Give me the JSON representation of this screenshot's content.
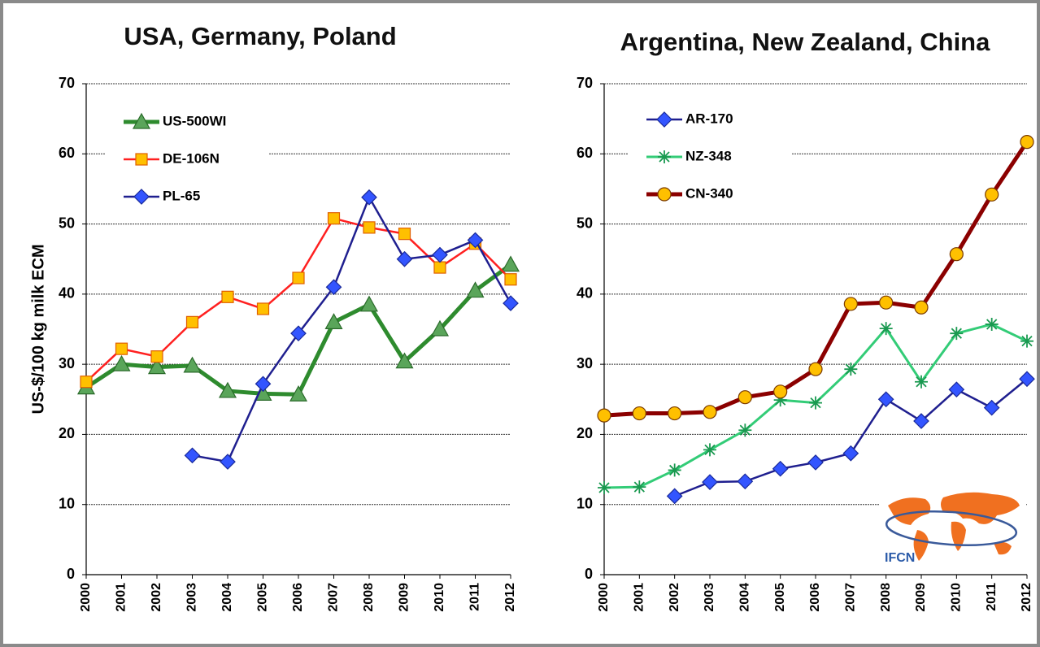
{
  "chart_data": [
    {
      "type": "line",
      "title": "USA, Germany, Poland",
      "ylabel": "US-$/100 kg milk ECM",
      "categories": [
        "2000",
        "2001",
        "2002",
        "2003",
        "2004",
        "2005",
        "2006",
        "2007",
        "2008",
        "2009",
        "2010",
        "2011",
        "2012"
      ],
      "ylim": [
        0,
        70
      ],
      "yticks": [
        0,
        10,
        20,
        30,
        40,
        50,
        60,
        70
      ],
      "grid": true,
      "legend": "upper-left",
      "series": [
        {
          "name": "US-500WI",
          "color": "#2e8b2e",
          "marker": "triangle",
          "marker_color": "#5aa55a",
          "values": [
            26.7,
            30.0,
            29.6,
            29.8,
            26.2,
            25.8,
            25.7,
            36.0,
            38.5,
            30.4,
            35.0,
            40.5,
            44.2
          ]
        },
        {
          "name": "DE-106N",
          "color": "#ff2020",
          "marker": "square",
          "marker_color": "#ffc000",
          "values": [
            27.5,
            32.2,
            31.1,
            36.0,
            39.6,
            37.9,
            42.3,
            50.8,
            49.5,
            48.6,
            43.8,
            47.2,
            42.1
          ]
        },
        {
          "name": "PL-65",
          "color": "#1f1f8f",
          "marker": "diamond",
          "marker_color": "#3355ff",
          "values": [
            null,
            null,
            null,
            17.0,
            16.1,
            27.2,
            34.4,
            41.0,
            53.8,
            45.0,
            45.6,
            47.7,
            38.7
          ]
        }
      ]
    },
    {
      "type": "line",
      "title": "Argentina, New Zealand, China",
      "categories": [
        "2000",
        "2001",
        "2002",
        "2003",
        "2004",
        "2005",
        "2006",
        "2007",
        "2008",
        "2009",
        "2010",
        "2011",
        "2012"
      ],
      "ylim": [
        0,
        70
      ],
      "yticks": [
        0,
        10,
        20,
        30,
        40,
        50,
        60,
        70
      ],
      "grid": true,
      "legend": "upper-left",
      "series": [
        {
          "name": "AR-170",
          "color": "#1f1f8f",
          "marker": "diamond",
          "marker_color": "#3355ff",
          "values": [
            null,
            null,
            11.2,
            13.2,
            13.3,
            15.1,
            16.0,
            17.3,
            25.0,
            21.9,
            26.4,
            23.8,
            27.9
          ]
        },
        {
          "name": "NZ-348",
          "color": "#33cc77",
          "marker": "star",
          "marker_color": "#1a9950",
          "values": [
            12.4,
            12.5,
            14.9,
            17.8,
            20.6,
            24.9,
            24.5,
            29.3,
            35.1,
            27.5,
            34.4,
            35.7,
            33.3
          ]
        },
        {
          "name": "CN-340",
          "color": "#8b0000",
          "marker": "circle",
          "marker_color": "#ffc000",
          "values": [
            22.7,
            23.0,
            23.0,
            23.2,
            25.3,
            26.1,
            29.3,
            38.6,
            38.8,
            38.1,
            45.7,
            54.2,
            61.7
          ]
        }
      ]
    }
  ],
  "logo_text": "IFCN"
}
